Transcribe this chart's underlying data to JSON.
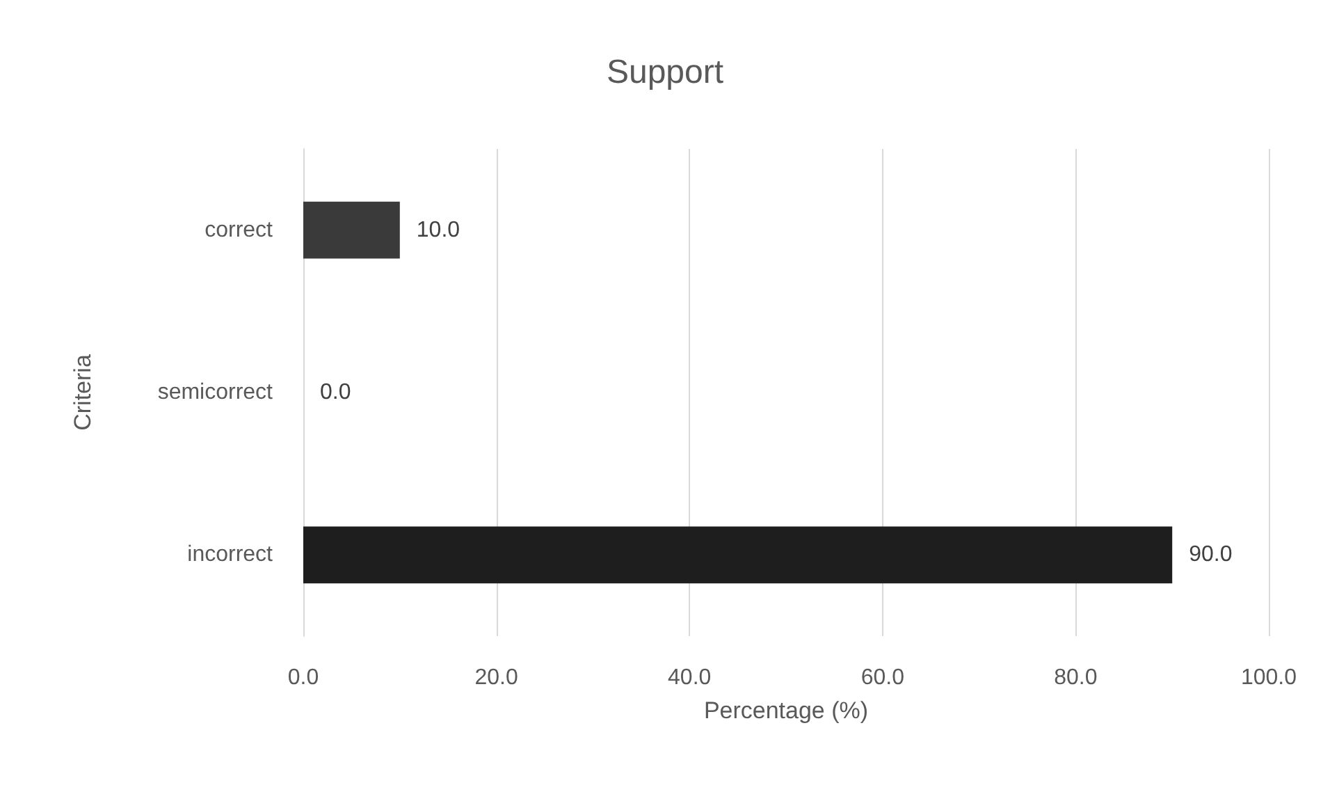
{
  "chart_data": {
    "type": "bar",
    "orientation": "horizontal",
    "title": "Support",
    "xlabel": "Percentage (%)",
    "ylabel": "Criteria",
    "categories": [
      "correct",
      "semicorrect",
      "incorrect"
    ],
    "values": [
      10,
      0,
      90
    ],
    "colors": [
      "#3a3a3a",
      "#3a3a3a",
      "#1e1e1e"
    ],
    "value_labels": [
      "10.0",
      "0.0",
      "90.0"
    ],
    "xlim": [
      0,
      100
    ],
    "xticks": [
      {
        "value": 0,
        "label": "0.0"
      },
      {
        "value": 20,
        "label": "20.0"
      },
      {
        "value": 40,
        "label": "40.0"
      },
      {
        "value": 60,
        "label": "60.0"
      },
      {
        "value": 80,
        "label": "80.0"
      },
      {
        "value": 100,
        "label": "100.0"
      }
    ],
    "grid": "x"
  }
}
